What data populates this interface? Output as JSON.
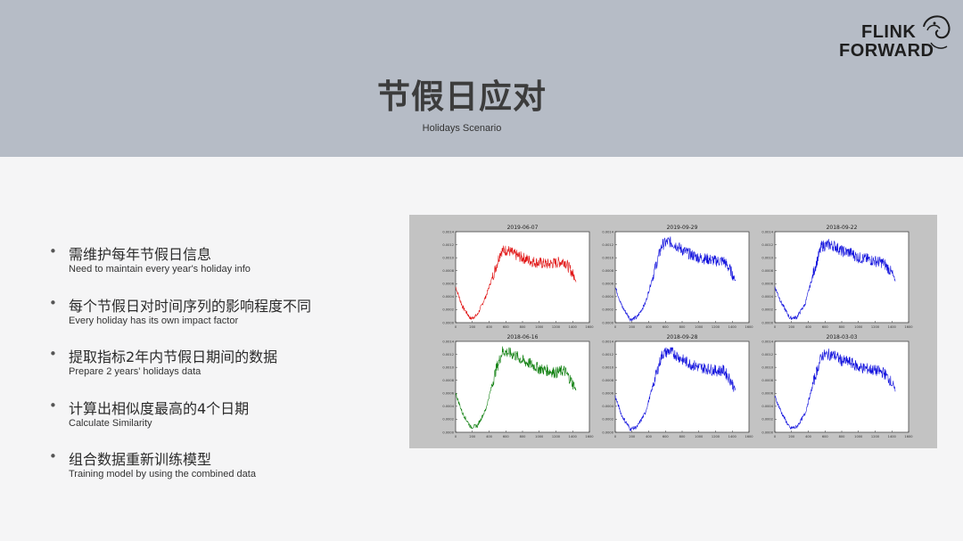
{
  "slide": {
    "title": "节假日应对",
    "subtitle": "Holidays Scenario"
  },
  "logo": {
    "line1": "FLINK",
    "line2": "FORWARD"
  },
  "bullets": [
    {
      "zh": "需维护每年节假日信息",
      "en": "Need to maintain every year's holiday info"
    },
    {
      "zh": "每个节假日对时间序列的影响程度不同",
      "en": "Every holiday has its own impact factor"
    },
    {
      "zh": "提取指标2年内节假日期间的数据",
      "en": "Prepare 2 years' holidays data"
    },
    {
      "zh": "计算出相似度最高的4个日期",
      "en": "Calculate Similarity"
    },
    {
      "zh": "组合数据重新训练模型",
      "en": "Training model by using the combined data"
    }
  ],
  "bullet_marker": "•",
  "chart_data": [
    {
      "type": "line",
      "title": "2019-06-07",
      "color": "#e01010",
      "xticks": [
        "0",
        "200",
        "400",
        "600",
        "800",
        "1000",
        "1200",
        "1400",
        "1600"
      ],
      "yticks": [
        "0.0000",
        "0.0002",
        "0.0004",
        "0.0006",
        "0.0008",
        "0.0010",
        "0.0012",
        "0.0014"
      ],
      "xlim": [
        0,
        1600
      ],
      "ylim": [
        0,
        0.0014
      ],
      "shape": [
        [
          0,
          0.00055
        ],
        [
          80,
          0.00025
        ],
        [
          180,
          6e-05
        ],
        [
          260,
          0.00012
        ],
        [
          360,
          0.0004
        ],
        [
          480,
          0.00085
        ],
        [
          540,
          0.0011
        ],
        [
          620,
          0.00112
        ],
        [
          700,
          0.00105
        ],
        [
          800,
          0.001
        ],
        [
          900,
          0.00095
        ],
        [
          1000,
          0.00092
        ],
        [
          1100,
          0.0009
        ],
        [
          1200,
          0.00092
        ],
        [
          1300,
          0.00095
        ],
        [
          1380,
          0.0008
        ],
        [
          1440,
          0.00065
        ]
      ]
    },
    {
      "type": "line",
      "title": "2019-09-29",
      "color": "#1010dd",
      "xticks": [
        "0",
        "200",
        "400",
        "600",
        "800",
        "1000",
        "1200",
        "1400",
        "1600"
      ],
      "yticks": [
        "0.0000",
        "0.0002",
        "0.0004",
        "0.0006",
        "0.0008",
        "0.0010",
        "0.0012",
        "0.0014"
      ],
      "xlim": [
        0,
        1600
      ],
      "ylim": [
        0,
        0.0014
      ],
      "shape": [
        [
          0,
          0.00055
        ],
        [
          80,
          0.00025
        ],
        [
          180,
          5e-05
        ],
        [
          260,
          8e-05
        ],
        [
          360,
          0.0003
        ],
        [
          480,
          0.00085
        ],
        [
          560,
          0.0012
        ],
        [
          640,
          0.00125
        ],
        [
          720,
          0.0012
        ],
        [
          800,
          0.00112
        ],
        [
          900,
          0.00105
        ],
        [
          1000,
          0.001
        ],
        [
          1100,
          0.00098
        ],
        [
          1200,
          0.00095
        ],
        [
          1300,
          0.00095
        ],
        [
          1380,
          0.0008
        ],
        [
          1440,
          0.00065
        ]
      ]
    },
    {
      "type": "line",
      "title": "2018-09-22",
      "color": "#1010dd",
      "xticks": [
        "0",
        "200",
        "400",
        "600",
        "800",
        "1000",
        "1200",
        "1400",
        "1600"
      ],
      "yticks": [
        "0.0000",
        "0.0002",
        "0.0004",
        "0.0006",
        "0.0008",
        "0.0010",
        "0.0012",
        "0.0014"
      ],
      "xlim": [
        0,
        1600
      ],
      "ylim": [
        0,
        0.0014
      ],
      "shape": [
        [
          0,
          0.00055
        ],
        [
          80,
          0.0003
        ],
        [
          180,
          7e-05
        ],
        [
          260,
          8e-05
        ],
        [
          360,
          0.00028
        ],
        [
          480,
          0.00085
        ],
        [
          560,
          0.00118
        ],
        [
          640,
          0.0012
        ],
        [
          720,
          0.00118
        ],
        [
          800,
          0.0011
        ],
        [
          900,
          0.00108
        ],
        [
          1000,
          0.001
        ],
        [
          1100,
          0.00098
        ],
        [
          1200,
          0.00095
        ],
        [
          1300,
          0.00092
        ],
        [
          1380,
          0.0008
        ],
        [
          1440,
          0.00065
        ]
      ]
    },
    {
      "type": "line",
      "title": "2018-06-16",
      "color": "#108010",
      "xticks": [
        "0",
        "200",
        "400",
        "600",
        "800",
        "1000",
        "1200",
        "1400",
        "1600"
      ],
      "yticks": [
        "0.0000",
        "0.0002",
        "0.0004",
        "0.0006",
        "0.0008",
        "0.0010",
        "0.0012",
        "0.0014"
      ],
      "xlim": [
        0,
        1600
      ],
      "ylim": [
        0,
        0.0014
      ],
      "shape": [
        [
          0,
          0.0006
        ],
        [
          80,
          0.0003
        ],
        [
          180,
          8e-05
        ],
        [
          260,
          0.0001
        ],
        [
          360,
          0.00035
        ],
        [
          480,
          0.00095
        ],
        [
          560,
          0.00125
        ],
        [
          640,
          0.00122
        ],
        [
          720,
          0.00118
        ],
        [
          800,
          0.0011
        ],
        [
          900,
          0.00105
        ],
        [
          1000,
          0.00098
        ],
        [
          1100,
          0.00095
        ],
        [
          1200,
          0.00092
        ],
        [
          1300,
          0.00095
        ],
        [
          1380,
          0.0008
        ],
        [
          1440,
          0.00065
        ]
      ]
    },
    {
      "type": "line",
      "title": "2018-09-28",
      "color": "#1010dd",
      "xticks": [
        "0",
        "200",
        "400",
        "600",
        "800",
        "1000",
        "1200",
        "1400",
        "1600"
      ],
      "yticks": [
        "0.0000",
        "0.0002",
        "0.0004",
        "0.0006",
        "0.0008",
        "0.0010",
        "0.0012",
        "0.0014"
      ],
      "xlim": [
        0,
        1600
      ],
      "ylim": [
        0,
        0.0014
      ],
      "shape": [
        [
          0,
          0.00055
        ],
        [
          80,
          0.00025
        ],
        [
          180,
          5e-05
        ],
        [
          260,
          8e-05
        ],
        [
          360,
          0.0003
        ],
        [
          480,
          0.00085
        ],
        [
          560,
          0.0012
        ],
        [
          640,
          0.00125
        ],
        [
          720,
          0.0012
        ],
        [
          800,
          0.00112
        ],
        [
          900,
          0.00105
        ],
        [
          1000,
          0.001
        ],
        [
          1100,
          0.00098
        ],
        [
          1200,
          0.00095
        ],
        [
          1300,
          0.00095
        ],
        [
          1380,
          0.0008
        ],
        [
          1440,
          0.00065
        ]
      ]
    },
    {
      "type": "line",
      "title": "2018-03-03",
      "color": "#1010dd",
      "xticks": [
        "0",
        "200",
        "400",
        "600",
        "800",
        "1000",
        "1200",
        "1400",
        "1600"
      ],
      "yticks": [
        "0.0000",
        "0.0002",
        "0.0004",
        "0.0006",
        "0.0008",
        "0.0010",
        "0.0012",
        "0.0014"
      ],
      "xlim": [
        0,
        1600
      ],
      "ylim": [
        0,
        0.0014
      ],
      "shape": [
        [
          0,
          0.00055
        ],
        [
          80,
          0.0003
        ],
        [
          180,
          6e-05
        ],
        [
          260,
          8e-05
        ],
        [
          360,
          0.00028
        ],
        [
          480,
          0.00085
        ],
        [
          560,
          0.00118
        ],
        [
          640,
          0.0012
        ],
        [
          720,
          0.00118
        ],
        [
          800,
          0.0011
        ],
        [
          900,
          0.00108
        ],
        [
          1000,
          0.001
        ],
        [
          1100,
          0.00098
        ],
        [
          1200,
          0.00095
        ],
        [
          1300,
          0.00092
        ],
        [
          1380,
          0.0008
        ],
        [
          1440,
          0.00065
        ]
      ]
    }
  ]
}
